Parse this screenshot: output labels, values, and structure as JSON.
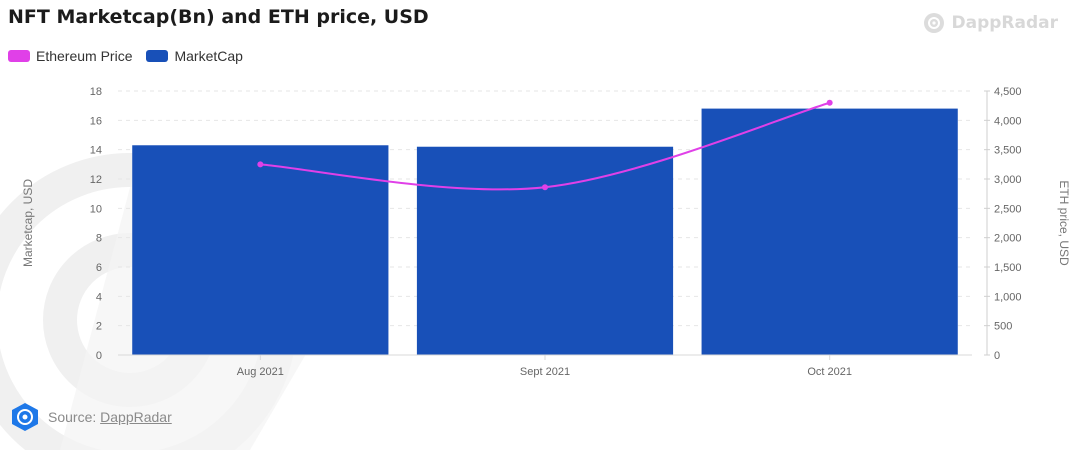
{
  "title": "NFT Marketcap(Bn) and ETH price, USD",
  "brand": {
    "name": "DappRadar",
    "icon": "dappradar-logo-icon"
  },
  "source": {
    "prefix": "Source: ",
    "link": "DappRadar",
    "icon": "dappradar-badge-icon"
  },
  "colors": {
    "marketcap": "#1850b8",
    "eth": "#e040e8",
    "grid": "#e6e6e6"
  },
  "chart_data": {
    "type": "bar",
    "title": "NFT Marketcap(Bn) and ETH price, USD",
    "categories": [
      "Aug 2021",
      "Sept 2021",
      "Oct 2021"
    ],
    "series": [
      {
        "name": "Ethereum Price",
        "type": "line",
        "axis": "right",
        "values": [
          3250,
          2860,
          4300
        ]
      },
      {
        "name": "MarketCap",
        "type": "bar",
        "axis": "left",
        "values": [
          14.3,
          14.2,
          16.8
        ]
      }
    ],
    "ylabel": "Marketcap, USD",
    "ylim": [
      0,
      18
    ],
    "yticks": [
      "0",
      "2",
      "4",
      "6",
      "8",
      "10",
      "12",
      "14",
      "16",
      "18"
    ],
    "y2label": "ETH price, USD",
    "y2lim": [
      0,
      4500
    ],
    "y2ticks": [
      "0",
      "500",
      "1,000",
      "1,500",
      "2,000",
      "2,500",
      "3,000",
      "3,500",
      "4,000",
      "4,500"
    ],
    "grid": true,
    "legend": "top-left"
  }
}
